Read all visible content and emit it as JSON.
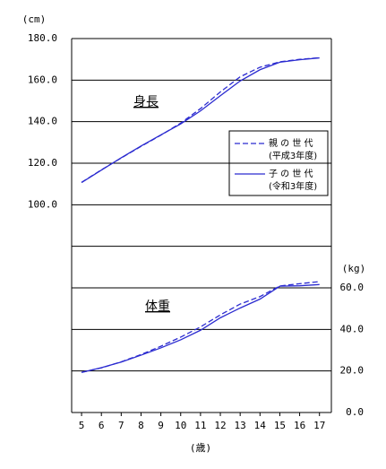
{
  "chart_data": {
    "type": "line",
    "y_label": "(cm)",
    "y2_label": "(kg)",
    "x_label": "(歳)",
    "annotations": [
      "身長",
      "体重"
    ],
    "x": [
      5,
      6,
      7,
      8,
      9,
      10,
      11,
      12,
      13,
      14,
      15,
      16,
      17
    ],
    "xlim": [
      4.5,
      17.6
    ],
    "xticks": [
      5,
      6,
      7,
      8,
      9,
      10,
      11,
      12,
      13,
      14,
      15,
      16,
      17
    ],
    "ylim": [
      0,
      180
    ],
    "yticks": [
      {
        "value": 100,
        "label": "100.0"
      },
      {
        "value": 120,
        "label": "120.0"
      },
      {
        "value": 140,
        "label": "140.0"
      },
      {
        "value": 160,
        "label": "160.0"
      },
      {
        "value": 180,
        "label": "180.0"
      }
    ],
    "y2lim": [
      0,
      180
    ],
    "y2ticks": [
      {
        "value": 0,
        "label": "0.0"
      },
      {
        "value": 20,
        "label": "20.0"
      },
      {
        "value": 40,
        "label": "40.0"
      },
      {
        "value": 60,
        "label": "60.0"
      }
    ],
    "gridlines": [
      20,
      40,
      60,
      80,
      100,
      120,
      140,
      160,
      180
    ],
    "series": [
      {
        "name": "親 の 世 代",
        "note": "(平成3年度)",
        "color": "#2b2bd0",
        "dashed": true,
        "values": [
          110.8,
          116.8,
          122.5,
          128.1,
          133.5,
          139.3,
          146.3,
          154.3,
          161.6,
          166.2,
          168.8,
          170.0,
          170.8
        ],
        "y2_values": [
          19.3,
          21.5,
          24.4,
          27.9,
          31.9,
          36.3,
          41.2,
          47.0,
          52.2,
          55.8,
          60.9,
          62.0,
          63.0
        ]
      },
      {
        "name": "子 の 世 代",
        "note": "(令和3年度)",
        "color": "#2b2bd0",
        "dashed": false,
        "values": [
          110.7,
          116.7,
          122.6,
          128.3,
          133.6,
          138.9,
          145.2,
          152.5,
          159.6,
          165.0,
          168.6,
          169.8,
          170.7
        ],
        "y2_values": [
          19.3,
          21.6,
          24.3,
          27.6,
          31.1,
          35.0,
          39.6,
          45.6,
          50.3,
          54.6,
          60.8,
          61.0,
          61.6
        ]
      }
    ]
  }
}
